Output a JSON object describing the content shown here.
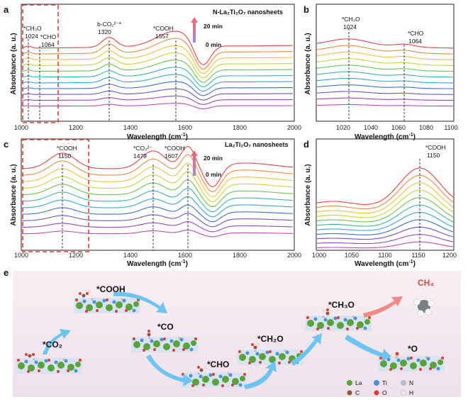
{
  "panel_labels": {
    "a": "a",
    "b": "b",
    "c": "c",
    "d": "d",
    "e": "e"
  },
  "axes": {
    "y_label": "Absorbance (a. u.)",
    "x_label": "Wavelength (cm",
    "x_label_sup": "-1",
    "x_label_end": ")"
  },
  "legend_time": {
    "top": "20 min",
    "bottom": "0 min"
  },
  "curve_colors": [
    "#e64444",
    "#f08a3c",
    "#f4be3d",
    "#c6d33b",
    "#6cc44a",
    "#38b8a4",
    "#3aa2dc",
    "#3d6fd6",
    "#6c52c8",
    "#9a46c4",
    "#c248b6"
  ],
  "panel_a": {
    "title": "N-La₂Ti₂O₇ nanosheets",
    "x_ticks": [
      "1000",
      "1200",
      "1400",
      "1600",
      "1800",
      "2000"
    ],
    "annotations": {
      "ch3o_name": "*CH₃O",
      "ch3o_value": "1024",
      "cho_name": "*CHO",
      "cho_value": "1064",
      "bco2_name": "b-CO₂²⁻*",
      "bco2_value": "1320",
      "cooh_name": "*COOH",
      "cooh_value": "1557"
    }
  },
  "panel_b": {
    "x_ticks": [
      "1020",
      "1040",
      "1060",
      "1080",
      "1100"
    ],
    "annotations": {
      "ch3o_name": "*CH₃O",
      "ch3o_value": "1024",
      "cho_name": "*CHO",
      "cho_value": "1064"
    }
  },
  "panel_c": {
    "title": "La₂Ti₂O₇ nanosheets",
    "x_ticks": [
      "1000",
      "1200",
      "1400",
      "1600",
      "1800",
      "2000"
    ],
    "annotations": {
      "cooh1_name": "*COOH",
      "cooh1_value": "1150",
      "co3_name": "*CO₃²⁻",
      "co3_value": "1479",
      "cooh2_name": "*COOH",
      "cooh2_value": "1607"
    }
  },
  "panel_d": {
    "x_ticks": [
      "1000",
      "1050",
      "1100",
      "1150",
      "1200"
    ],
    "annotations": {
      "cooh_name": "*COOH",
      "cooh_value": "1150"
    }
  },
  "panel_e": {
    "species": {
      "co2": "*CO₂",
      "cooh": "*COOH",
      "co": "*CO",
      "cho": "*CHO",
      "ch2o": "*CH₂O",
      "ch3o": "*CH₃O",
      "ch4": "CH₄",
      "o": "*O"
    },
    "legend": {
      "la": "La",
      "ti": "Ti",
      "n": "N",
      "c": "C",
      "o": "O",
      "h": "H"
    },
    "colors": {
      "la": "#5aa33c",
      "ti": "#4f8fd3",
      "n": "#b9bcc8",
      "c": "#8a5a3a",
      "o": "#e03a3a",
      "h": "#f2e6e6",
      "arrow": "#6cc4f0",
      "ch4_arrow": "#f08a86",
      "ch4_text": "#e0433b"
    }
  }
}
